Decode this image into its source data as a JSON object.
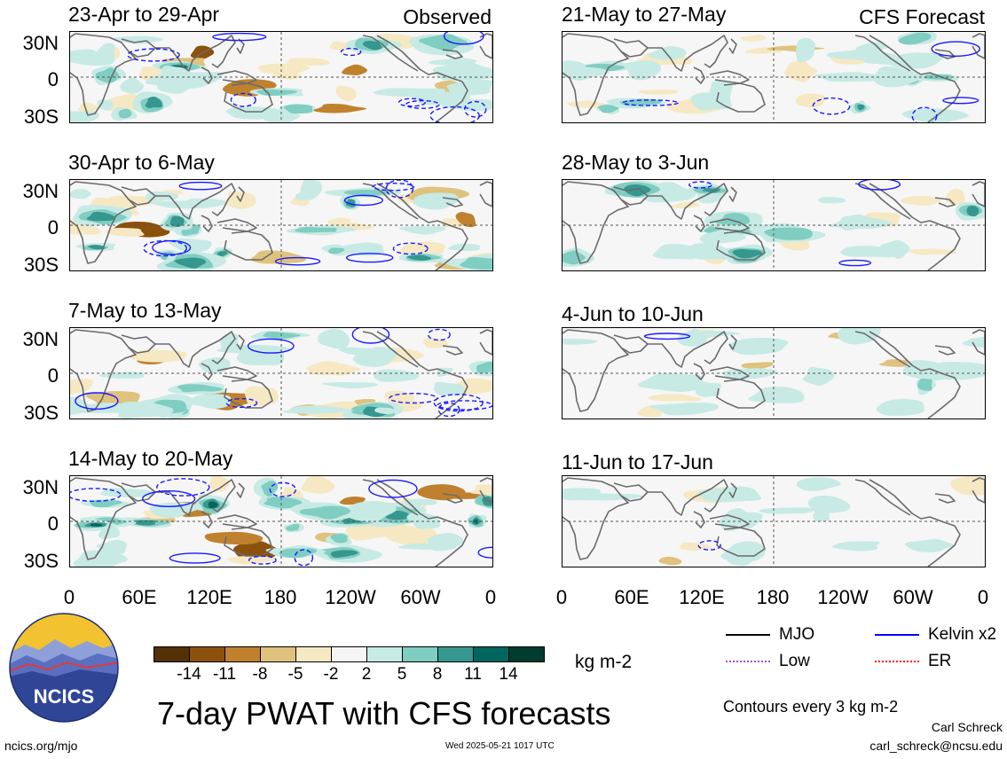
{
  "panels": {
    "obs": [
      {
        "title": "23-Apr to 29-Apr",
        "tag": "Observed"
      },
      {
        "title": "30-Apr to 6-May",
        "tag": ""
      },
      {
        "title": "7-May to 13-May",
        "tag": ""
      },
      {
        "title": "14-May to 20-May",
        "tag": ""
      }
    ],
    "fcst": [
      {
        "title": "21-May to 27-May",
        "tag": "CFS Forecast"
      },
      {
        "title": "28-May to 3-Jun",
        "tag": ""
      },
      {
        "title": "4-Jun to 10-Jun",
        "tag": ""
      },
      {
        "title": "11-Jun to 17-Jun",
        "tag": ""
      }
    ]
  },
  "lat_labels": [
    "30N",
    "0",
    "30S"
  ],
  "lon_labels": [
    "0",
    "60E",
    "120E",
    "180",
    "120W",
    "60W",
    "0"
  ],
  "colorbar": {
    "tick_labels": [
      "-14",
      "-11",
      "-8",
      "-5",
      "-2",
      "2",
      "5",
      "8",
      "11",
      "14"
    ],
    "colors": [
      "#543005",
      "#8c510a",
      "#bf812d",
      "#dfc27d",
      "#f6e8c3",
      "#f5f5f5",
      "#c7eae5",
      "#80cdc1",
      "#35978f",
      "#01665e",
      "#003c30"
    ],
    "units": "kg m-2"
  },
  "legend": {
    "mjo": {
      "label": "MJO",
      "color": "#000000"
    },
    "kelvin": {
      "label": "Kelvin x2",
      "color": "#0000ff"
    },
    "low": {
      "label": "Low",
      "color": "#9b4fd6"
    },
    "er": {
      "label": "ER",
      "color": "#ff0000"
    },
    "contours_note": "Contours every 3 kg m-2"
  },
  "footer": {
    "logo_text": "NCICS",
    "main_title": "7-day PWAT with CFS forecasts",
    "url": "ncics.org/mjo",
    "timestamp": "Wed 2025-05-21 1017 UTC",
    "author": "Carl Schreck",
    "email": "carl_schreck@ncsu.edu"
  }
}
